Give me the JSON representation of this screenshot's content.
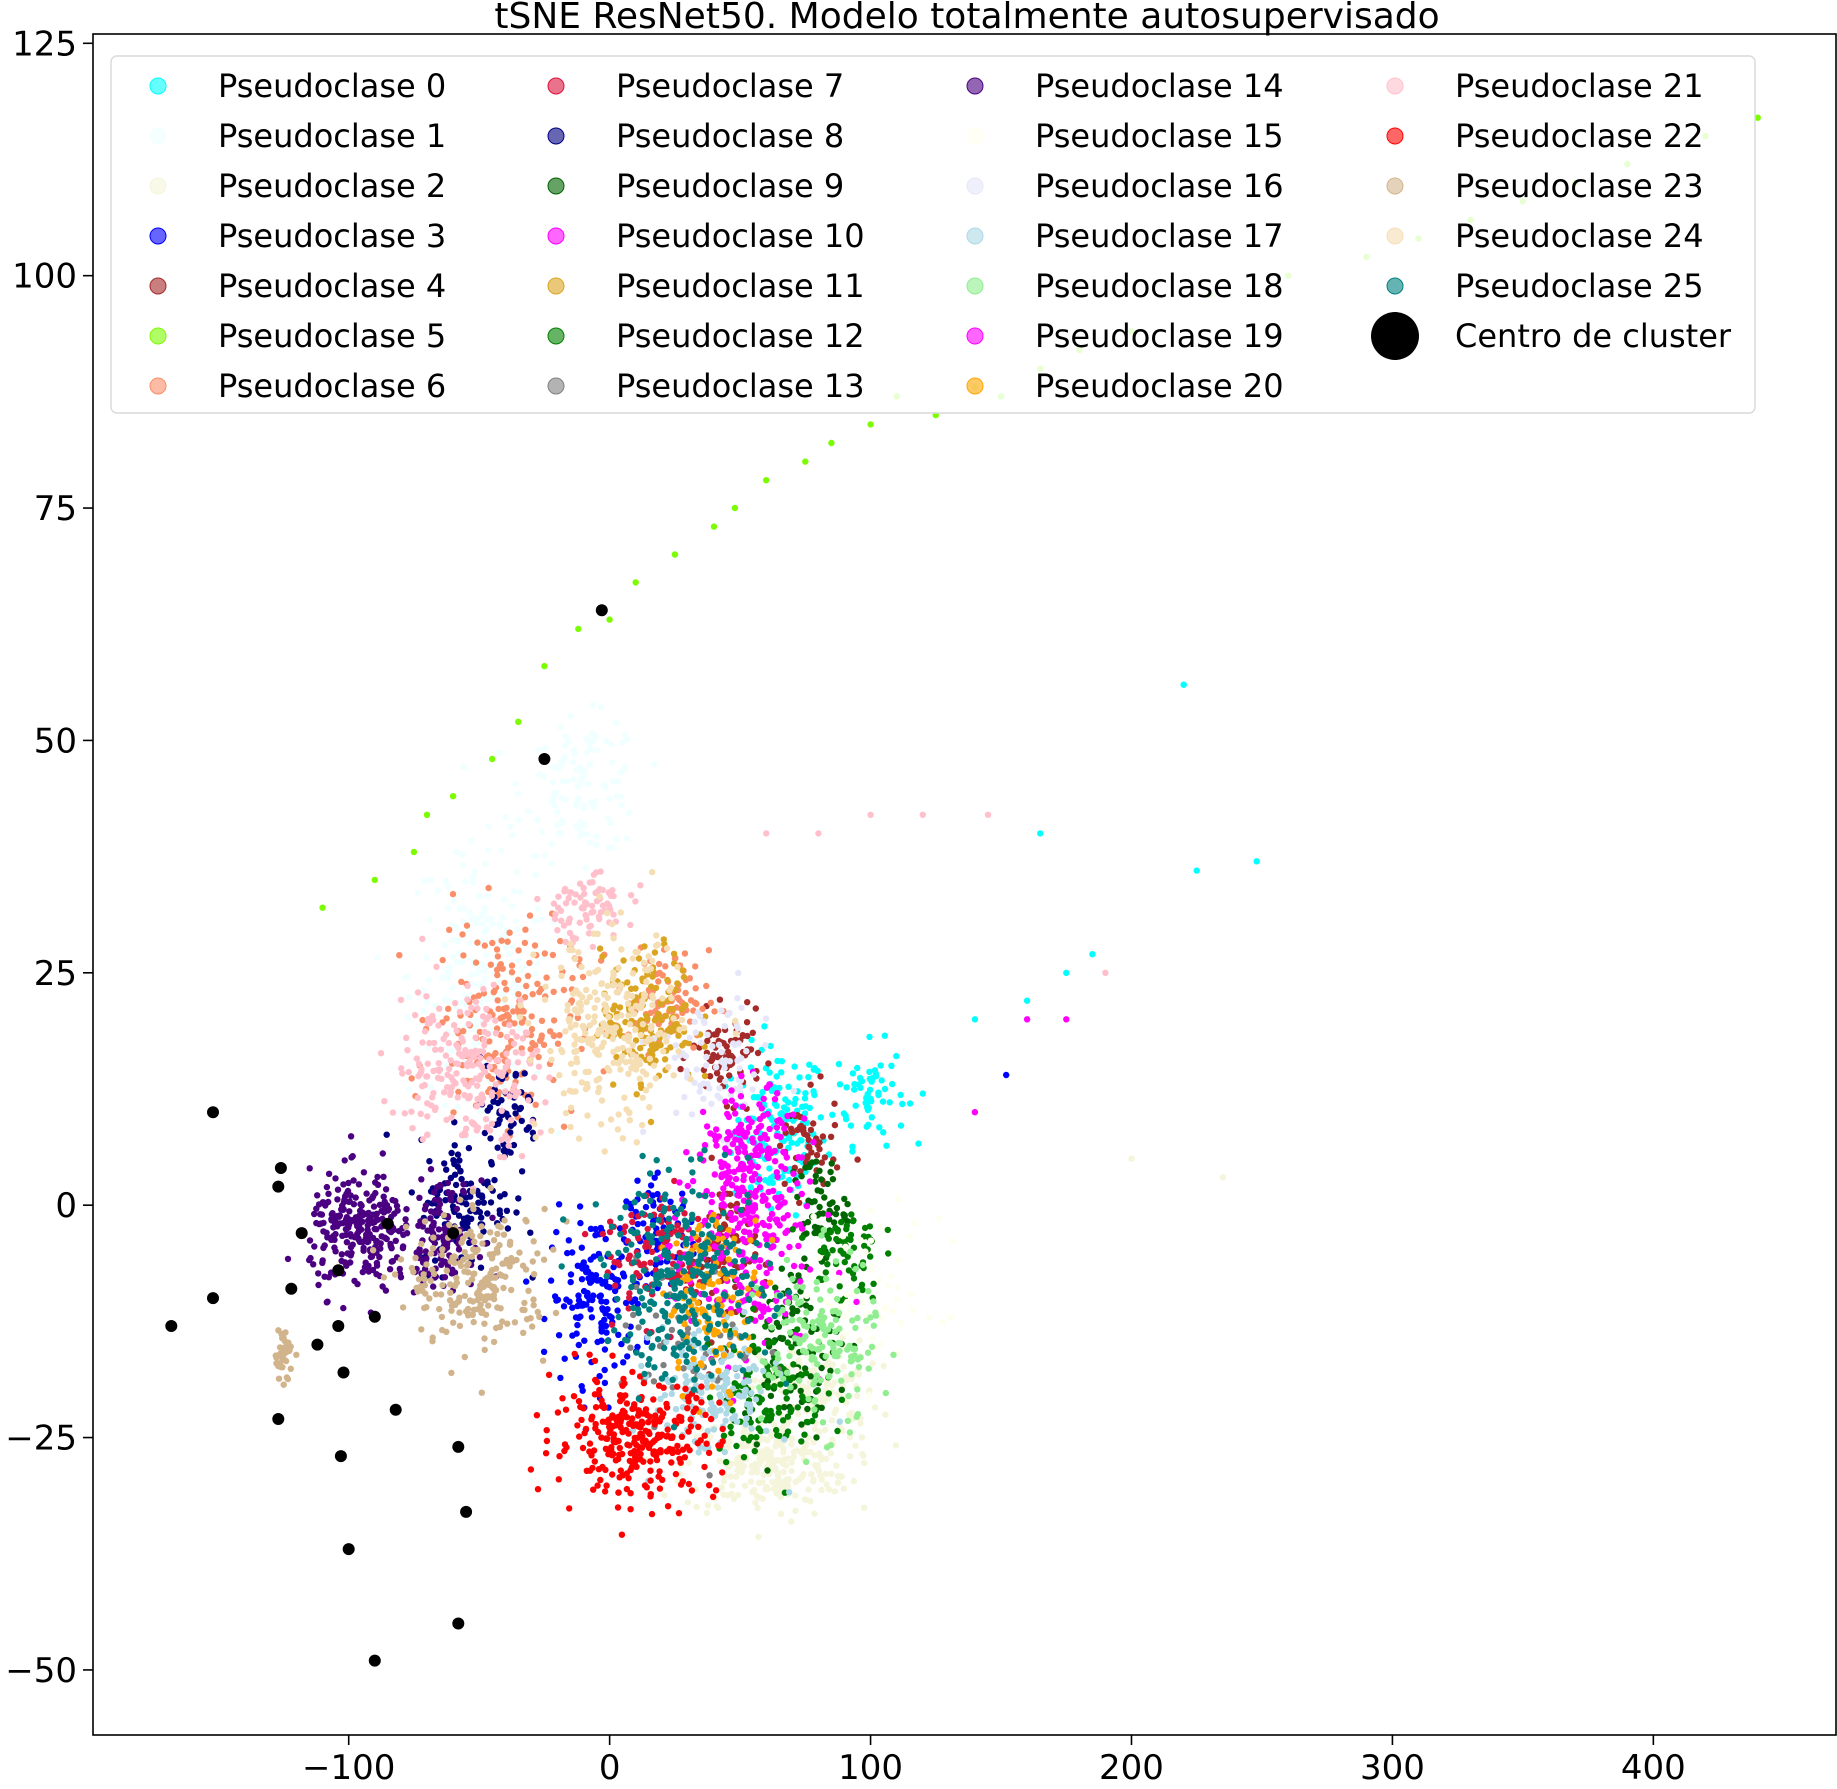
{
  "chart_data": {
    "type": "scatter",
    "title": "tSNE ResNet50. Modelo totalmente autosupervisado",
    "xlabel": "",
    "ylabel": "",
    "xlim": [
      -198,
      470
    ],
    "ylim": [
      -57,
      126
    ],
    "xticks": [
      -100,
      0,
      100,
      200,
      300,
      400
    ],
    "yticks": [
      -50,
      -25,
      0,
      25,
      50,
      75,
      100,
      125
    ],
    "xtick_labels": [
      "−100",
      "0",
      "100",
      "200",
      "300",
      "400"
    ],
    "ytick_labels": [
      "−50",
      "−25",
      "0",
      "25",
      "50",
      "75",
      "100",
      "125"
    ],
    "grid": false,
    "legend_position": "top",
    "series": [
      {
        "name": "Pseudoclase 0",
        "color": "#00ffff",
        "blobs": [
          [
            65,
            8,
            20,
            10,
            150
          ],
          [
            100,
            12,
            15,
            6,
            60
          ]
        ],
        "extra": [
          [
            108,
            15
          ],
          [
            120,
            12
          ],
          [
            140,
            20
          ],
          [
            160,
            22
          ],
          [
            175,
            25
          ],
          [
            185,
            27
          ],
          [
            220,
            56
          ],
          [
            225,
            36
          ],
          [
            248,
            37
          ],
          [
            165,
            40
          ]
        ]
      },
      {
        "name": "Pseudoclase 1",
        "color": "#f0ffff",
        "blobs": [
          [
            -50,
            25,
            30,
            15,
            200
          ],
          [
            -10,
            45,
            25,
            8,
            120
          ]
        ],
        "extra": []
      },
      {
        "name": "Pseudoclase 2",
        "color": "#f5f5dc",
        "blobs": [
          [
            60,
            -28,
            35,
            6,
            250
          ],
          [
            80,
            -20,
            25,
            6,
            120
          ]
        ],
        "extra": [
          [
            200,
            5
          ],
          [
            235,
            3
          ]
        ]
      },
      {
        "name": "Pseudoclase 3",
        "color": "#0000ff",
        "blobs": [
          [
            -5,
            -10,
            20,
            10,
            150
          ],
          [
            20,
            -3,
            15,
            6,
            80
          ]
        ],
        "extra": [
          [
            152,
            14
          ]
        ]
      },
      {
        "name": "Pseudoclase 4",
        "color": "#a52a2a",
        "blobs": [
          [
            45,
            -5,
            12,
            10,
            80
          ],
          [
            45,
            16,
            15,
            5,
            80
          ],
          [
            75,
            6,
            15,
            6,
            50
          ]
        ],
        "extra": []
      },
      {
        "name": "Pseudoclase 5",
        "color": "#7cfc00",
        "blobs": [],
        "extra": [
          [
            -75,
            38
          ],
          [
            -70,
            42
          ],
          [
            -60,
            44
          ],
          [
            -45,
            48
          ],
          [
            -35,
            52
          ],
          [
            -25,
            58
          ],
          [
            -12,
            62
          ],
          [
            0,
            63
          ],
          [
            10,
            67
          ],
          [
            25,
            70
          ],
          [
            40,
            73
          ],
          [
            48,
            75
          ],
          [
            60,
            78
          ],
          [
            75,
            80
          ],
          [
            85,
            82
          ],
          [
            100,
            84
          ],
          [
            110,
            87
          ],
          [
            125,
            85
          ],
          [
            140,
            88
          ],
          [
            150,
            87
          ],
          [
            165,
            90
          ],
          [
            180,
            92
          ],
          [
            200,
            94
          ],
          [
            230,
            98
          ],
          [
            260,
            100
          ],
          [
            290,
            102
          ],
          [
            310,
            104
          ],
          [
            330,
            106
          ],
          [
            350,
            108
          ],
          [
            370,
            110
          ],
          [
            390,
            112
          ],
          [
            420,
            115
          ],
          [
            440,
            117
          ],
          [
            -110,
            32
          ],
          [
            -90,
            35
          ]
        ]
      },
      {
        "name": "Pseudoclase 6",
        "color": "#fa8e68",
        "blobs": [
          [
            -40,
            20,
            30,
            12,
            200
          ],
          [
            20,
            22,
            20,
            6,
            100
          ]
        ],
        "extra": []
      },
      {
        "name": "Pseudoclase 7",
        "color": "#dc143c",
        "blobs": [
          [
            20,
            -5,
            25,
            8,
            120
          ]
        ],
        "extra": []
      },
      {
        "name": "Pseudoclase 8",
        "color": "#000080",
        "blobs": [
          [
            -55,
            0,
            20,
            8,
            120
          ],
          [
            -40,
            10,
            15,
            6,
            60
          ]
        ],
        "extra": []
      },
      {
        "name": "Pseudoclase 9",
        "color": "#006400",
        "blobs": [
          [
            70,
            -15,
            20,
            10,
            120
          ],
          [
            80,
            0,
            12,
            6,
            60
          ]
        ],
        "extra": []
      },
      {
        "name": "Pseudoclase 10",
        "color": "#ff00ff",
        "blobs": [
          [
            50,
            -5,
            30,
            12,
            180
          ]
        ],
        "extra": [
          [
            160,
            20
          ],
          [
            175,
            20
          ],
          [
            140,
            10
          ]
        ]
      },
      {
        "name": "Pseudoclase 11",
        "color": "#daa520",
        "blobs": [
          [
            15,
            20,
            20,
            8,
            150
          ]
        ],
        "extra": []
      },
      {
        "name": "Pseudoclase 12",
        "color": "#008000",
        "blobs": [
          [
            60,
            -20,
            25,
            8,
            120
          ],
          [
            90,
            -5,
            15,
            6,
            60
          ]
        ],
        "extra": []
      },
      {
        "name": "Pseudoclase 13",
        "color": "#808080",
        "blobs": [
          [
            30,
            -15,
            30,
            10,
            60
          ]
        ],
        "extra": []
      },
      {
        "name": "Pseudoclase 14",
        "color": "#4b0082",
        "blobs": [
          [
            -95,
            -3,
            22,
            7,
            260
          ],
          [
            -65,
            -3,
            15,
            6,
            120
          ]
        ],
        "extra": []
      },
      {
        "name": "Pseudoclase 15",
        "color": "#fffff0",
        "blobs": [
          [
            100,
            -10,
            30,
            10,
            60
          ]
        ],
        "extra": []
      },
      {
        "name": "Pseudoclase 16",
        "color": "#e6e6fa",
        "blobs": [
          [
            40,
            15,
            25,
            8,
            80
          ]
        ],
        "extra": []
      },
      {
        "name": "Pseudoclase 17",
        "color": "#add8e6",
        "blobs": [
          [
            40,
            -20,
            25,
            8,
            150
          ]
        ],
        "extra": []
      },
      {
        "name": "Pseudoclase 18",
        "color": "#90ee90",
        "blobs": [
          [
            80,
            -15,
            25,
            10,
            150
          ]
        ],
        "extra": []
      },
      {
        "name": "Pseudoclase 19",
        "color": "#ff00ff",
        "blobs": [
          [
            55,
            5,
            20,
            8,
            180
          ]
        ],
        "extra": []
      },
      {
        "name": "Pseudoclase 20",
        "color": "#ffa500",
        "blobs": [
          [
            40,
            -10,
            20,
            10,
            120
          ]
        ],
        "extra": []
      },
      {
        "name": "Pseudoclase 21",
        "color": "#ffc0cb",
        "blobs": [
          [
            -55,
            15,
            30,
            10,
            220
          ],
          [
            -10,
            32,
            20,
            4,
            80
          ]
        ],
        "extra": [
          [
            100,
            42
          ],
          [
            120,
            42
          ],
          [
            145,
            42
          ],
          [
            60,
            40
          ],
          [
            80,
            40
          ],
          [
            190,
            25
          ]
        ]
      },
      {
        "name": "Pseudoclase 22",
        "color": "#ff0000",
        "blobs": [
          [
            10,
            -25,
            35,
            7,
            300
          ]
        ],
        "extra": []
      },
      {
        "name": "Pseudoclase 23",
        "color": "#d2b48c",
        "blobs": [
          [
            -50,
            -8,
            30,
            8,
            220
          ],
          [
            -125,
            -16,
            4,
            3,
            40
          ]
        ],
        "extra": []
      },
      {
        "name": "Pseudoclase 24",
        "color": "#f5deb3",
        "blobs": [
          [
            0,
            18,
            30,
            12,
            260
          ]
        ],
        "extra": []
      },
      {
        "name": "Pseudoclase 25",
        "color": "#008080",
        "blobs": [
          [
            30,
            -8,
            35,
            12,
            280
          ]
        ],
        "extra": []
      }
    ],
    "centers": {
      "name": "Centro de cluster",
      "color": "#000000",
      "points": [
        [
          -152,
          10
        ],
        [
          -126,
          4
        ],
        [
          -127,
          2
        ],
        [
          -118,
          -3
        ],
        [
          -122,
          -9
        ],
        [
          -104,
          -7
        ],
        [
          -112,
          -15
        ],
        [
          -104,
          -13
        ],
        [
          -102,
          -18
        ],
        [
          -90,
          -12
        ],
        [
          -85,
          -2
        ],
        [
          -60,
          -3
        ],
        [
          -152,
          -10
        ],
        [
          -168,
          -13
        ],
        [
          -127,
          -23
        ],
        [
          -103,
          -27
        ],
        [
          -100,
          -37
        ],
        [
          -82,
          -22
        ],
        [
          -58,
          -26
        ],
        [
          -55,
          -33
        ],
        [
          -58,
          -45
        ],
        [
          -90,
          -49
        ],
        [
          -3,
          64
        ],
        [
          -25,
          48
        ]
      ]
    }
  }
}
